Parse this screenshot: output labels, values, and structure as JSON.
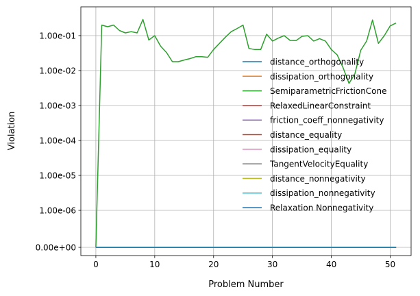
{
  "chart_data": {
    "type": "line",
    "xlabel": "Problem Number",
    "ylabel": "Violation",
    "xlim": [
      -2.55,
      53.55
    ],
    "x_ticks": [
      0,
      10,
      20,
      30,
      40,
      50
    ],
    "y_scale": "symlog",
    "y_ticks": [
      0,
      1e-06,
      1e-05,
      0.0001,
      0.001,
      0.01,
      0.1
    ],
    "y_tick_labels": [
      "0.00e+00",
      "1.00e-06",
      "1.00e-05",
      "1.00e-04",
      "1.00e-03",
      "1.00e-02",
      "1.00e-01"
    ],
    "grid": true,
    "legend_position": "center-right",
    "x": [
      0,
      1,
      2,
      3,
      4,
      5,
      6,
      7,
      8,
      9,
      10,
      11,
      12,
      13,
      14,
      15,
      16,
      17,
      18,
      19,
      20,
      21,
      22,
      23,
      24,
      25,
      26,
      27,
      28,
      29,
      30,
      31,
      32,
      33,
      34,
      35,
      36,
      37,
      38,
      39,
      40,
      41,
      42,
      43,
      44,
      45,
      46,
      47,
      48,
      49,
      50,
      51
    ],
    "series": [
      {
        "name": "distance_orthogonality",
        "color": "#1f77b4",
        "values": [
          0,
          0,
          0,
          0,
          0,
          0,
          0,
          0,
          0,
          0,
          0,
          0,
          0,
          0,
          0,
          0,
          0,
          0,
          0,
          0,
          0,
          0,
          0,
          0,
          0,
          0,
          0,
          0,
          0,
          0,
          0,
          0,
          0,
          0,
          0,
          0,
          0,
          0,
          0,
          0,
          0,
          0,
          0,
          0,
          0,
          0,
          0,
          0,
          0,
          0,
          0,
          0
        ]
      },
      {
        "name": "dissipation_orthogonality",
        "color": "#ff7f0e",
        "values": [
          0,
          0,
          0,
          0,
          0,
          0,
          0,
          0,
          0,
          0,
          0,
          0,
          0,
          0,
          0,
          0,
          0,
          0,
          0,
          0,
          0,
          0,
          0,
          0,
          0,
          0,
          0,
          0,
          0,
          0,
          0,
          0,
          0,
          0,
          0,
          0,
          0,
          0,
          0,
          0,
          0,
          0,
          0,
          0,
          0,
          0,
          0,
          0,
          0,
          0,
          0,
          0
        ]
      },
      {
        "name": "SemiparametricFrictionCone",
        "color": "#2ca02c",
        "values": [
          0,
          0.2,
          0.18,
          0.2,
          0.14,
          0.12,
          0.13,
          0.12,
          0.29,
          0.075,
          0.1,
          0.05,
          0.033,
          0.018,
          0.018,
          0.02,
          0.022,
          0.025,
          0.025,
          0.024,
          0.04,
          0.06,
          0.09,
          0.13,
          0.16,
          0.2,
          0.043,
          0.04,
          0.04,
          0.11,
          0.07,
          0.085,
          0.1,
          0.073,
          0.072,
          0.095,
          0.1,
          0.07,
          0.082,
          0.07,
          0.04,
          0.028,
          0.012,
          0.0043,
          0.008,
          0.038,
          0.07,
          0.28,
          0.06,
          0.1,
          0.19,
          0.23
        ]
      },
      {
        "name": "RelaxedLinearConstraint",
        "color": "#d62728",
        "values": [
          0,
          0,
          0,
          0,
          0,
          0,
          0,
          0,
          0,
          0,
          0,
          0,
          0,
          0,
          0,
          0,
          0,
          0,
          0,
          0,
          0,
          0,
          0,
          0,
          0,
          0,
          0,
          0,
          0,
          0,
          0,
          0,
          0,
          0,
          0,
          0,
          0,
          0,
          0,
          0,
          0,
          0,
          0,
          0,
          0,
          0,
          0,
          0,
          0,
          0,
          0,
          0
        ]
      },
      {
        "name": "friction_coeff_nonnegativity",
        "color": "#9467bd",
        "values": [
          0,
          0,
          0,
          0,
          0,
          0,
          0,
          0,
          0,
          0,
          0,
          0,
          0,
          0,
          0,
          0,
          0,
          0,
          0,
          0,
          0,
          0,
          0,
          0,
          0,
          0,
          0,
          0,
          0,
          0,
          0,
          0,
          0,
          0,
          0,
          0,
          0,
          0,
          0,
          0,
          0,
          0,
          0,
          0,
          0,
          0,
          0,
          0,
          0,
          0,
          0,
          0
        ]
      },
      {
        "name": "distance_equality",
        "color": "#8c564b",
        "values": [
          0,
          0,
          0,
          0,
          0,
          0,
          0,
          0,
          0,
          0,
          0,
          0,
          0,
          0,
          0,
          0,
          0,
          0,
          0,
          0,
          0,
          0,
          0,
          0,
          0,
          0,
          0,
          0,
          0,
          0,
          0,
          0,
          0,
          0,
          0,
          0,
          0,
          0,
          0,
          0,
          0,
          0,
          0,
          0,
          0,
          0,
          0,
          0,
          0,
          0,
          0,
          0
        ]
      },
      {
        "name": "dissipation_equality",
        "color": "#e377c2",
        "values": [
          0,
          0,
          0,
          0,
          0,
          0,
          0,
          0,
          0,
          0,
          0,
          0,
          0,
          0,
          0,
          0,
          0,
          0,
          0,
          0,
          0,
          0,
          0,
          0,
          0,
          0,
          0,
          0,
          0,
          0,
          0,
          0,
          0,
          0,
          0,
          0,
          0,
          0,
          0,
          0,
          0,
          0,
          0,
          0,
          0,
          0,
          0,
          0,
          0,
          0,
          0,
          0
        ]
      },
      {
        "name": "TangentVelocityEquality",
        "color": "#7f7f7f",
        "values": [
          0,
          0,
          0,
          0,
          0,
          0,
          0,
          0,
          0,
          0,
          0,
          0,
          0,
          0,
          0,
          0,
          0,
          0,
          0,
          0,
          0,
          0,
          0,
          0,
          0,
          0,
          0,
          0,
          0,
          0,
          0,
          0,
          0,
          0,
          0,
          0,
          0,
          0,
          0,
          0,
          0,
          0,
          0,
          0,
          0,
          0,
          0,
          0,
          0,
          0,
          0,
          0
        ]
      },
      {
        "name": "distance_nonnegativity",
        "color": "#bcbd22",
        "values": [
          0,
          0,
          0,
          0,
          0,
          0,
          0,
          0,
          0,
          0,
          0,
          0,
          0,
          0,
          0,
          0,
          0,
          0,
          0,
          0,
          0,
          0,
          0,
          0,
          0,
          0,
          0,
          0,
          0,
          0,
          0,
          0,
          0,
          0,
          0,
          0,
          0,
          0,
          0,
          0,
          0,
          0,
          0,
          0,
          0,
          0,
          0,
          0,
          0,
          0,
          0,
          0
        ]
      },
      {
        "name": "dissipation_nonnegativity",
        "color": "#17becf",
        "values": [
          0,
          0,
          0,
          0,
          0,
          0,
          0,
          0,
          0,
          0,
          0,
          0,
          0,
          0,
          0,
          0,
          0,
          0,
          0,
          0,
          0,
          0,
          0,
          0,
          0,
          0,
          0,
          0,
          0,
          0,
          0,
          0,
          0,
          0,
          0,
          0,
          0,
          0,
          0,
          0,
          0,
          0,
          0,
          0,
          0,
          0,
          0,
          0,
          0,
          0,
          0,
          0
        ]
      },
      {
        "name": "Relaxation Nonnegativity",
        "color": "#1f77b4",
        "values": [
          0,
          0,
          0,
          0,
          0,
          0,
          0,
          0,
          0,
          0,
          0,
          0,
          0,
          0,
          0,
          0,
          0,
          0,
          0,
          0,
          0,
          0,
          0,
          0,
          0,
          0,
          0,
          0,
          0,
          0,
          0,
          0,
          0,
          0,
          0,
          0,
          0,
          0,
          0,
          0,
          0,
          0,
          0,
          0,
          0,
          0,
          0,
          0,
          0,
          0,
          0,
          0
        ]
      }
    ]
  }
}
